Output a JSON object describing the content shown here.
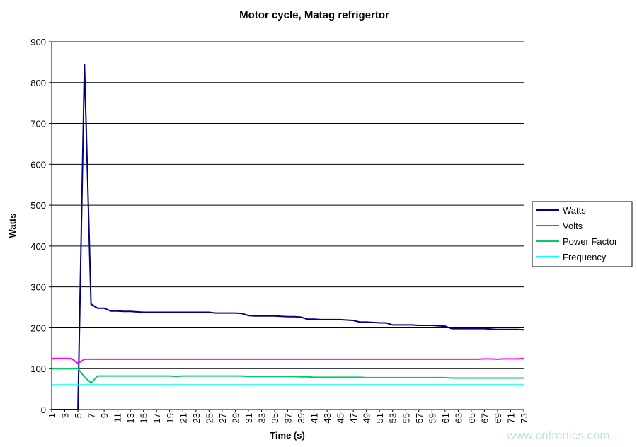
{
  "chart_data": {
    "type": "line",
    "title": "Motor cycle, Matag refrigertor",
    "xlabel": "Time (s)",
    "ylabel": "Watts",
    "ylim": [
      0,
      900
    ],
    "yticks": [
      0,
      100,
      200,
      300,
      400,
      500,
      600,
      700,
      800,
      900
    ],
    "x": [
      1,
      2,
      3,
      4,
      5,
      6,
      7,
      8,
      9,
      10,
      11,
      12,
      13,
      14,
      15,
      16,
      17,
      18,
      19,
      20,
      21,
      22,
      23,
      24,
      25,
      26,
      27,
      28,
      29,
      30,
      31,
      32,
      33,
      34,
      35,
      36,
      37,
      38,
      39,
      40,
      41,
      42,
      43,
      44,
      45,
      46,
      47,
      48,
      49,
      50,
      51,
      52,
      53,
      54,
      55,
      56,
      57,
      58,
      59,
      60,
      61,
      62,
      63,
      64,
      65,
      66,
      67,
      68,
      69,
      70,
      71,
      72,
      73
    ],
    "xtick_labels": [
      "1",
      "3",
      "5",
      "7",
      "9",
      "11",
      "13",
      "15",
      "17",
      "19",
      "21",
      "23",
      "25",
      "27",
      "29",
      "31",
      "33",
      "35",
      "37",
      "39",
      "41",
      "43",
      "45",
      "47",
      "49",
      "51",
      "53",
      "55",
      "57",
      "59",
      "61",
      "63",
      "65",
      "67",
      "69",
      "71",
      "73"
    ],
    "grid": true,
    "legend_position": "right",
    "series": [
      {
        "name": "Watts",
        "color": "#000080",
        "values": [
          0,
          0,
          0,
          0,
          0,
          845,
          258,
          248,
          248,
          241,
          241,
          240,
          240,
          239,
          238,
          238,
          238,
          238,
          238,
          238,
          238,
          238,
          238,
          238,
          238,
          236,
          236,
          236,
          236,
          235,
          230,
          229,
          229,
          229,
          229,
          228,
          227,
          227,
          226,
          221,
          221,
          220,
          220,
          220,
          220,
          219,
          218,
          214,
          214,
          213,
          212,
          212,
          207,
          207,
          207,
          207,
          206,
          206,
          206,
          205,
          204,
          198,
          198,
          198,
          198,
          198,
          198,
          197,
          196,
          196,
          196,
          196,
          195
        ]
      },
      {
        "name": "Volts",
        "color": "#ff00ff",
        "values": [
          125,
          125,
          125,
          125,
          113,
          123,
          123,
          123,
          123,
          123,
          123,
          123,
          123,
          123,
          123,
          123,
          123,
          123,
          123,
          123,
          123,
          123,
          123,
          123,
          123,
          123,
          123,
          123,
          123,
          123,
          123,
          123,
          123,
          123,
          123,
          123,
          123,
          123,
          123,
          123,
          123,
          123,
          123,
          123,
          123,
          123,
          123,
          123,
          123,
          123,
          123,
          123,
          123,
          123,
          123,
          123,
          123,
          123,
          123,
          123,
          123,
          123,
          123,
          123,
          123,
          123,
          124,
          124,
          123,
          124,
          124,
          124,
          125
        ]
      },
      {
        "name": "Power Factor",
        "color": "#00cc66",
        "values": [
          100,
          100,
          100,
          100,
          100,
          80,
          65,
          82,
          82,
          82,
          82,
          82,
          82,
          82,
          82,
          82,
          82,
          82,
          82,
          81,
          82,
          82,
          82,
          82,
          82,
          82,
          82,
          82,
          82,
          82,
          81,
          81,
          81,
          81,
          81,
          81,
          81,
          81,
          80,
          80,
          79,
          79,
          79,
          79,
          79,
          79,
          79,
          79,
          78,
          78,
          78,
          78,
          78,
          78,
          78,
          78,
          78,
          78,
          78,
          78,
          78,
          77,
          77,
          77,
          77,
          77,
          77,
          77,
          77,
          77,
          77,
          77,
          77
        ]
      },
      {
        "name": "Frequency",
        "color": "#00ffff",
        "values": [
          60,
          60,
          60,
          60,
          60,
          60,
          60,
          60,
          60,
          60,
          60,
          60,
          60,
          60,
          60,
          60,
          60,
          60,
          60,
          60,
          60,
          60,
          60,
          60,
          60,
          60,
          60,
          60,
          60,
          60,
          60,
          60,
          60,
          60,
          60,
          60,
          60,
          60,
          60,
          60,
          60,
          60,
          60,
          60,
          60,
          60,
          60,
          60,
          60,
          60,
          60,
          60,
          60,
          60,
          60,
          60,
          60,
          60,
          60,
          60,
          60,
          60,
          60,
          60,
          60,
          60,
          60,
          60,
          60,
          60,
          60,
          60,
          60
        ]
      }
    ]
  },
  "watermark": "www.cntronics.com"
}
